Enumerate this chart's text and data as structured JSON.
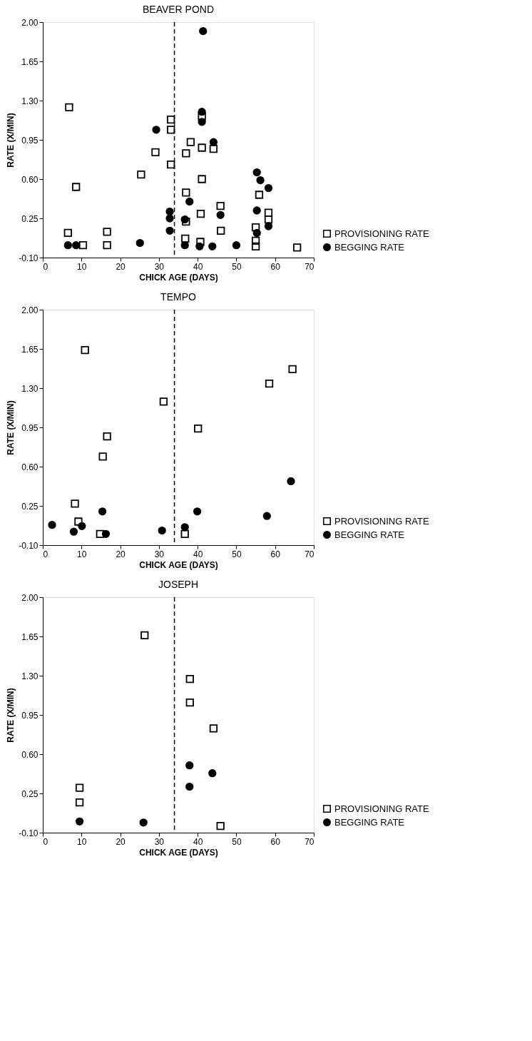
{
  "chart_data": [
    {
      "type": "scatter",
      "title": "BEAVER POND",
      "xlabel": "CHICK AGE (DAYS)",
      "ylabel": "RATE (X/MIN)",
      "xlim": [
        0,
        70
      ],
      "xticks": [
        0,
        10,
        20,
        30,
        40,
        50,
        60,
        70
      ],
      "ylim": [
        -0.1,
        2.0
      ],
      "yticks": [
        {
          "value": -0.1,
          "label": "-0.10"
        },
        {
          "value": 0.25,
          "label": "0.25"
        },
        {
          "value": 0.6,
          "label": "0.60"
        },
        {
          "value": 0.95,
          "label": "0.95"
        },
        {
          "value": 1.3,
          "label": "1.30"
        },
        {
          "value": 1.65,
          "label": "1.65"
        },
        {
          "value": 2.0,
          "label": "2.00"
        }
      ],
      "grid": false,
      "legend": "bottom right",
      "ref_lines": [
        {
          "axis": "x",
          "value": 34,
          "color": "#000000",
          "line_style": "dashed"
        }
      ],
      "series": [
        {
          "name": "PROVISIONING RATE",
          "color": "#000000",
          "marker": "square",
          "x": [
            6.8,
            8.6,
            6.5,
            10.4,
            16.6,
            16.6,
            25.4,
            29.1,
            33.1,
            33.1,
            33.1,
            37.0,
            38.2,
            37.0,
            37.0,
            36.8,
            41.1,
            41.1,
            41.1,
            40.8,
            40.7,
            44.1,
            45.9,
            46.0,
            55.9,
            55.0,
            55.0,
            55.0,
            58.3,
            58.3,
            65.7
          ],
          "values": [
            1.24,
            0.53,
            0.12,
            0.01,
            0.13,
            0.01,
            0.64,
            0.84,
            1.13,
            1.04,
            0.73,
            0.83,
            0.93,
            0.48,
            0.22,
            0.07,
            0.88,
            1.16,
            0.6,
            0.29,
            0.04,
            0.87,
            0.36,
            0.14,
            0.46,
            0.17,
            0.05,
            0.0,
            0.3,
            0.24,
            -0.01
          ]
        },
        {
          "name": "BEGGING RATE",
          "color": "#000000",
          "marker": "circle",
          "x": [
            41.4,
            29.3,
            41.1,
            41.1,
            44.1,
            55.3,
            56.2,
            58.3,
            37.9,
            32.8,
            32.8,
            32.8,
            36.7,
            45.9,
            55.3,
            55.3,
            58.3,
            25.1,
            6.5,
            8.6,
            36.7,
            40.5,
            43.8,
            50.0
          ],
          "values": [
            1.92,
            1.04,
            1.2,
            1.11,
            0.93,
            0.66,
            0.59,
            0.52,
            0.4,
            0.31,
            0.25,
            0.14,
            0.24,
            0.28,
            0.32,
            0.12,
            0.18,
            0.03,
            0.01,
            0.01,
            0.01,
            0.0,
            0.0,
            0.01
          ]
        }
      ]
    },
    {
      "type": "scatter",
      "title": "TEMPO",
      "xlabel": "CHICK AGE (DAYS)",
      "ylabel": "RATE (X/MIN)",
      "xlim": [
        0,
        70
      ],
      "xticks": [
        0,
        10,
        20,
        30,
        40,
        50,
        60,
        70
      ],
      "ylim": [
        -0.1,
        2.0
      ],
      "yticks": [
        {
          "value": -0.1,
          "label": "-0.10"
        },
        {
          "value": 0.25,
          "label": "0.25"
        },
        {
          "value": 0.6,
          "label": "0.60"
        },
        {
          "value": 0.95,
          "label": "0.95"
        },
        {
          "value": 1.3,
          "label": "1.30"
        },
        {
          "value": 1.65,
          "label": "1.65"
        },
        {
          "value": 2.0,
          "label": "2.00"
        }
      ],
      "grid": false,
      "legend": "bottom right",
      "ref_lines": [
        {
          "axis": "x",
          "value": 34,
          "color": "#000000",
          "line_style": "dashed"
        }
      ],
      "series": [
        {
          "name": "PROVISIONING RATE",
          "color": "#000000",
          "marker": "square",
          "x": [
            10.9,
            16.6,
            15.5,
            8.3,
            9.2,
            14.8,
            31.2,
            36.7,
            40.1,
            58.5,
            64.5
          ],
          "values": [
            1.64,
            0.87,
            0.69,
            0.27,
            0.11,
            0.0,
            1.18,
            0.0,
            0.94,
            1.34,
            1.47
          ]
        },
        {
          "name": "BEGGING RATE",
          "color": "#000000",
          "marker": "circle",
          "x": [
            2.4,
            8.0,
            9.5,
            10.1,
            15.4,
            16.3,
            30.8,
            36.7,
            39.9,
            57.9,
            64.1
          ],
          "values": [
            0.08,
            0.02,
            null,
            0.07,
            0.2,
            0.0,
            0.03,
            0.06,
            0.2,
            0.16,
            0.47
          ]
        }
      ]
    },
    {
      "type": "scatter",
      "title": "JOSEPH",
      "xlabel": "CHICK AGE (DAYS)",
      "ylabel": "RATE (X/MIN)",
      "xlim": [
        0,
        70
      ],
      "xticks": [
        0,
        10,
        20,
        30,
        40,
        50,
        60,
        70
      ],
      "ylim": [
        -0.1,
        2.0
      ],
      "yticks": [
        {
          "value": -0.1,
          "label": "-0.10"
        },
        {
          "value": 0.25,
          "label": "0.25"
        },
        {
          "value": 0.6,
          "label": "0.60"
        },
        {
          "value": 0.95,
          "label": "0.95"
        },
        {
          "value": 1.3,
          "label": "1.30"
        },
        {
          "value": 1.65,
          "label": "1.65"
        },
        {
          "value": 2.0,
          "label": "2.00"
        }
      ],
      "grid": false,
      "legend": "bottom right",
      "ref_lines": [
        {
          "axis": "x",
          "value": 34,
          "color": "#000000",
          "line_style": "dashed"
        }
      ],
      "series": [
        {
          "name": "PROVISIONING RATE",
          "color": "#000000",
          "marker": "square",
          "x": [
            26.3,
            38.0,
            38.0,
            44.1,
            9.5,
            9.5,
            45.9
          ],
          "values": [
            1.66,
            1.27,
            1.06,
            0.83,
            0.3,
            0.17,
            -0.04
          ]
        },
        {
          "name": "BEGGING RATE",
          "color": "#000000",
          "marker": "circle",
          "x": [
            37.9,
            43.8,
            37.9,
            9.5,
            26.0
          ],
          "values": [
            0.5,
            0.43,
            0.31,
            0.0,
            -0.01
          ]
        }
      ]
    }
  ]
}
